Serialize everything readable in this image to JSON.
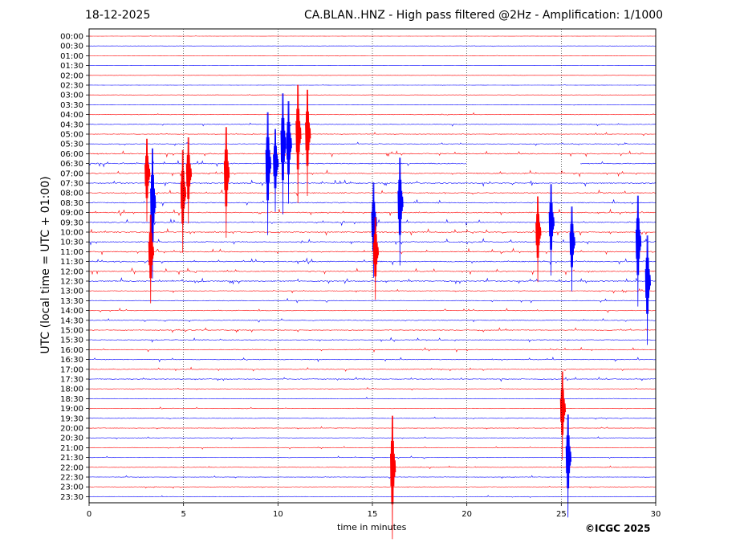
{
  "header": {
    "date": "18-12-2025",
    "title": "CA.BLAN..HNZ - High pass filtered @2Hz - Amplification: 1/1000"
  },
  "footer": {
    "copyright": "©ICGC 2025"
  },
  "chart_data": {
    "type": "line",
    "title": "CA.BLAN..HNZ - High pass filtered @2Hz - Amplification: 1/1000",
    "xlabel": "time in minutes",
    "ylabel": "UTC (local time = UTC + 01:00)",
    "xlim": [
      0,
      30
    ],
    "xticks": [
      0,
      5,
      10,
      15,
      20,
      25,
      30
    ],
    "yticks": [
      "00:00",
      "00:30",
      "01:00",
      "01:30",
      "02:00",
      "02:30",
      "03:00",
      "03:30",
      "04:00",
      "04:30",
      "05:00",
      "05:30",
      "06:00",
      "06:30",
      "07:00",
      "07:30",
      "08:00",
      "08:30",
      "09:00",
      "09:30",
      "10:00",
      "10:30",
      "11:00",
      "11:30",
      "12:00",
      "12:30",
      "13:00",
      "13:30",
      "14:00",
      "14:30",
      "15:00",
      "15:30",
      "16:00",
      "16:30",
      "17:00",
      "17:30",
      "18:00",
      "18:30",
      "19:00",
      "19:30",
      "20:00",
      "20:30",
      "21:00",
      "21:30",
      "22:00",
      "22:30",
      "23:00",
      "23:30"
    ],
    "grid": "vertical dotted at 5-minute intervals",
    "colors": {
      "even_rows": "#ff0000",
      "odd_rows": "#0000ff"
    },
    "gap": {
      "row": "06:30",
      "from_minute": 20,
      "to_minute": 26
    },
    "large_events": [
      {
        "row": "05:00",
        "minute": 11.1
      },
      {
        "row": "05:00",
        "minute": 11.6
      },
      {
        "row": "05:30",
        "minute": 10.3
      },
      {
        "row": "05:30",
        "minute": 10.6
      },
      {
        "row": "06:30",
        "minute": 9.5
      },
      {
        "row": "06:30",
        "minute": 9.9
      },
      {
        "row": "07:00",
        "minute": 3.1
      },
      {
        "row": "07:00",
        "minute": 5.3
      },
      {
        "row": "07:00",
        "minute": 7.3
      },
      {
        "row": "08:00",
        "minute": 5.0
      },
      {
        "row": "08:30",
        "minute": 3.4
      },
      {
        "row": "08:30",
        "minute": 16.5
      },
      {
        "row": "09:30",
        "minute": 24.5
      },
      {
        "row": "09:30",
        "minute": 15.1
      },
      {
        "row": "10:00",
        "minute": 23.8
      },
      {
        "row": "10:30",
        "minute": 25.6
      },
      {
        "row": "10:30",
        "minute": 29.1
      },
      {
        "row": "11:00",
        "minute": 3.3
      },
      {
        "row": "11:00",
        "minute": 15.2
      },
      {
        "row": "12:30",
        "minute": 29.6
      },
      {
        "row": "19:00",
        "minute": 25.1
      },
      {
        "row": "21:30",
        "minute": 25.4
      },
      {
        "row": "22:00",
        "minute": 16.1
      }
    ]
  }
}
